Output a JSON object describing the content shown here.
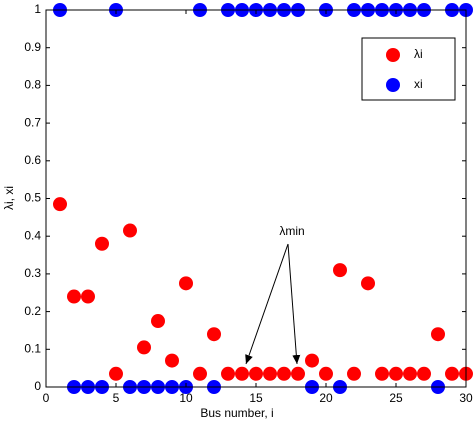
{
  "chart_data": {
    "type": "scatter",
    "x_label": "Bus number, i",
    "y_label": "λi, xi",
    "annotation": "λmin",
    "x": [
      1,
      2,
      3,
      4,
      5,
      6,
      7,
      8,
      9,
      10,
      11,
      12,
      13,
      14,
      15,
      16,
      17,
      18,
      19,
      20,
      21,
      22,
      23,
      24,
      25,
      26,
      27,
      28,
      29,
      30
    ],
    "series": [
      {
        "name": "λi",
        "color": "#ff0000",
        "values": [
          0.485,
          0.24,
          0.24,
          0.38,
          0.035,
          0.415,
          0.105,
          0.175,
          0.07,
          0.275,
          0.035,
          0.14,
          0.035,
          0.035,
          0.035,
          0.035,
          0.035,
          0.035,
          0.07,
          0.035,
          0.31,
          0.035,
          0.275,
          0.035,
          0.035,
          0.035,
          0.035,
          0.14,
          0.035,
          0.035
        ]
      },
      {
        "name": "xi",
        "color": "#0000ff",
        "values": [
          1,
          0,
          0,
          0,
          1,
          0,
          0,
          0,
          0,
          0,
          1,
          0,
          1,
          1,
          1,
          1,
          1,
          1,
          0,
          1,
          0,
          1,
          1,
          1,
          1,
          1,
          1,
          0,
          1,
          1
        ]
      }
    ],
    "xlim": [
      0,
      30
    ],
    "xticks": [
      0,
      5,
      10,
      15,
      20,
      25,
      30
    ],
    "ylim": [
      0,
      1
    ],
    "yticks": [
      0,
      0.1,
      0.2,
      0.3,
      0.4,
      0.5,
      0.6,
      0.7,
      0.8,
      0.9,
      1
    ],
    "legend": "upper right"
  }
}
